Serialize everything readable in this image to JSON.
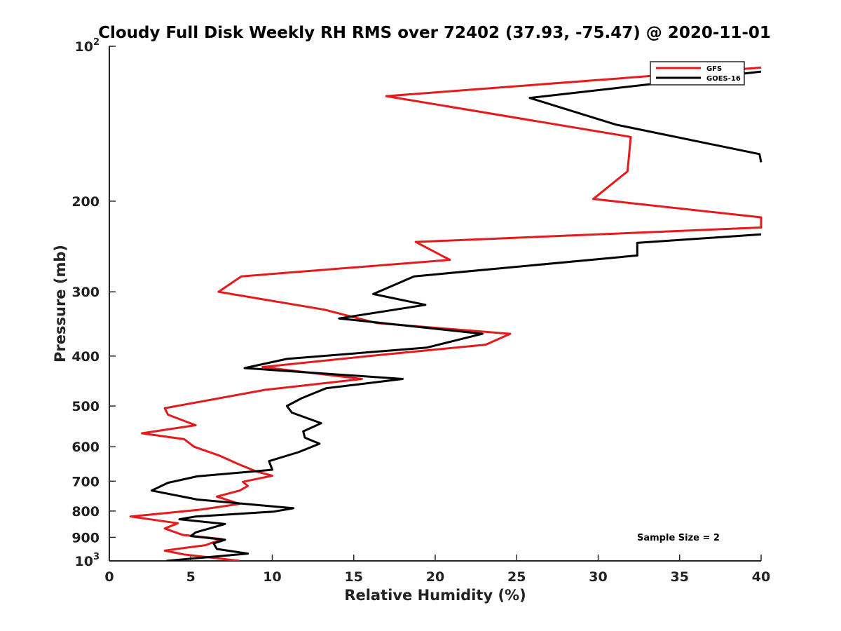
{
  "chart_data": {
    "type": "line",
    "title": "Cloudy Full Disk Weekly RH RMS over 72402 (37.93, -75.47) @ 2020-11-01",
    "xlabel": "Relative Humidity (%)",
    "ylabel": "Pressure (mb)",
    "xlim": [
      0,
      40
    ],
    "ylim": [
      1000,
      100
    ],
    "yscale": "log",
    "y_reversed": true,
    "grid": false,
    "legend_position": "top-right",
    "x_ticks": [
      "0",
      "5",
      "10",
      "15",
      "20",
      "25",
      "30",
      "35",
      "40"
    ],
    "y_ticks": [
      {
        "value": 100,
        "label": "10",
        "exp": "2"
      },
      {
        "value": 200,
        "label": "200"
      },
      {
        "value": 300,
        "label": "300"
      },
      {
        "value": 400,
        "label": "400"
      },
      {
        "value": 500,
        "label": "500"
      },
      {
        "value": 600,
        "label": "600"
      },
      {
        "value": 700,
        "label": "700"
      },
      {
        "value": 800,
        "label": "800"
      },
      {
        "value": 900,
        "label": "900"
      },
      {
        "value": 1000,
        "label": "10",
        "exp": "3"
      }
    ],
    "annotation": "Sample Size = 2",
    "series": [
      {
        "name": "GFS",
        "color": "#e41a1c",
        "points": [
          [
            40,
            110
          ],
          [
            17,
            125
          ],
          [
            32,
            150
          ],
          [
            31.8,
            175
          ],
          [
            29.7,
            198
          ],
          [
            40,
            215
          ],
          [
            40,
            225
          ],
          [
            18.8,
            240
          ],
          [
            20.9,
            260
          ],
          [
            8.1,
            280
          ],
          [
            6.7,
            300
          ],
          [
            13.2,
            325
          ],
          [
            16.4,
            345
          ],
          [
            24.6,
            362
          ],
          [
            23.1,
            380
          ],
          [
            15.9,
            400
          ],
          [
            9.4,
            420
          ],
          [
            15.5,
            443
          ],
          [
            9.6,
            465
          ],
          [
            3.4,
            505
          ],
          [
            3.6,
            520
          ],
          [
            5.3,
            545
          ],
          [
            2.0,
            565
          ],
          [
            4.6,
            580
          ],
          [
            5.2,
            600
          ],
          [
            6.8,
            625
          ],
          [
            7.9,
            648
          ],
          [
            9.0,
            670
          ],
          [
            10.0,
            683
          ],
          [
            8.2,
            702
          ],
          [
            8.5,
            715
          ],
          [
            8.0,
            730
          ],
          [
            6.6,
            750
          ],
          [
            8.0,
            775
          ],
          [
            5.6,
            795
          ],
          [
            1.3,
            820
          ],
          [
            4.2,
            845
          ],
          [
            3.4,
            865
          ],
          [
            4.5,
            890
          ],
          [
            6.9,
            907
          ],
          [
            5.9,
            932
          ],
          [
            3.4,
            955
          ],
          [
            4.6,
            972
          ],
          [
            8.0,
            1000
          ]
        ]
      },
      {
        "name": "GOES-16",
        "color": "#000000",
        "points": [
          [
            40,
            112
          ],
          [
            25.8,
            126
          ],
          [
            31.1,
            142
          ],
          [
            39.9,
            162
          ],
          [
            40,
            168
          ],
          null,
          [
            40,
            232
          ],
          [
            32.4,
            241
          ],
          [
            32.4,
            255
          ],
          [
            18.7,
            280
          ],
          [
            16.2,
            303
          ],
          [
            19.4,
            318
          ],
          [
            14.1,
            338
          ],
          [
            22.9,
            362
          ],
          [
            19.5,
            385
          ],
          [
            10.9,
            405
          ],
          [
            8.3,
            422
          ],
          [
            18.0,
            443
          ],
          [
            13.3,
            462
          ],
          [
            11.8,
            483
          ],
          [
            10.9,
            500
          ],
          [
            11.2,
            515
          ],
          [
            13.0,
            540
          ],
          [
            11.9,
            560
          ],
          [
            12.0,
            576
          ],
          [
            12.9,
            592
          ],
          [
            11.6,
            615
          ],
          [
            9.8,
            640
          ],
          [
            10.0,
            665
          ],
          [
            5.4,
            685
          ],
          [
            3.6,
            705
          ],
          [
            2.6,
            730
          ],
          [
            5.4,
            760
          ],
          [
            11.3,
            790
          ],
          [
            10.1,
            802
          ],
          [
            5.3,
            820
          ],
          [
            4.3,
            830
          ],
          [
            7.1,
            848
          ],
          [
            5.3,
            880
          ],
          [
            5.0,
            895
          ],
          [
            7.1,
            910
          ],
          [
            6.4,
            925
          ],
          [
            6.6,
            948
          ],
          [
            8.5,
            968
          ],
          [
            3.5,
            1000
          ]
        ]
      }
    ]
  }
}
